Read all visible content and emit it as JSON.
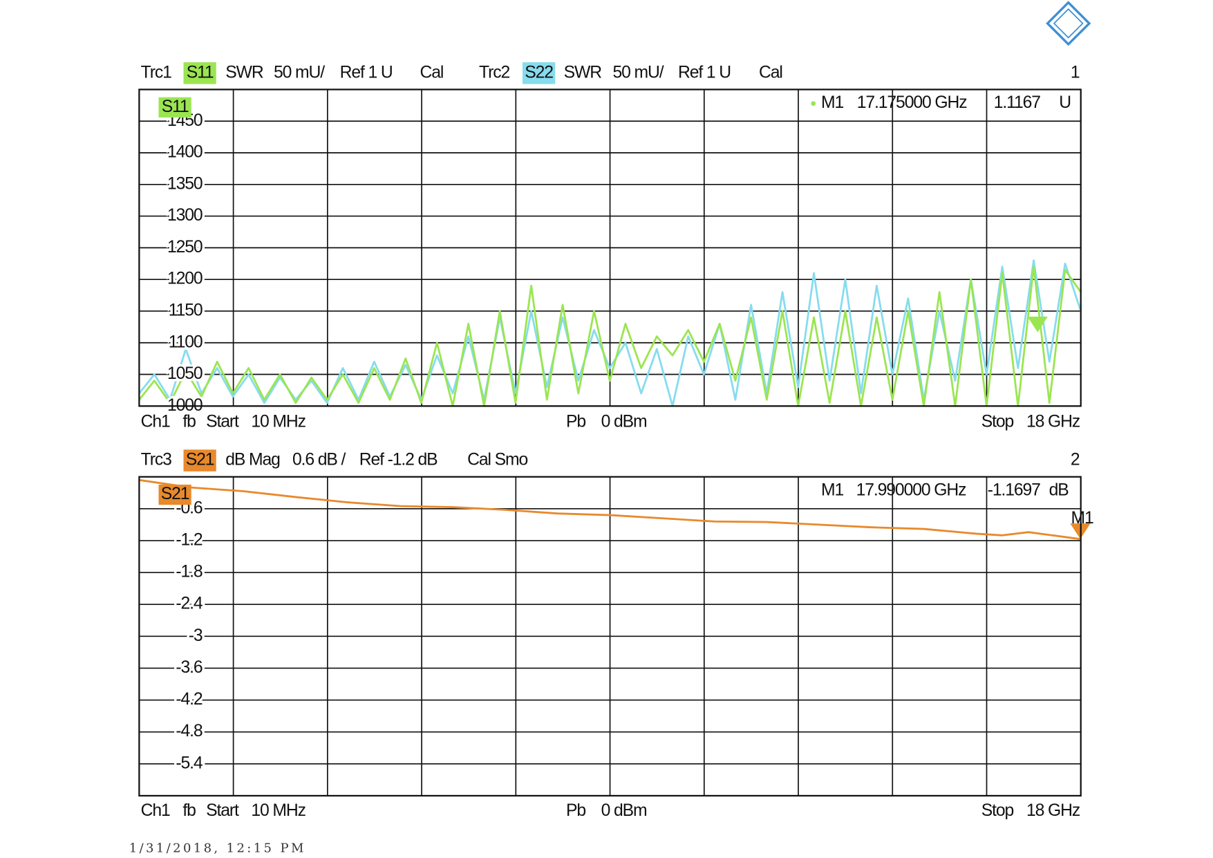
{
  "chart_data": [
    {
      "type": "line",
      "header": [
        "Trc1",
        "SWR",
        "50 mU/",
        "Ref 1 U",
        "Cal",
        "Trc2",
        "SWR",
        "50 mU/",
        "Ref 1 U",
        "Cal"
      ],
      "window": "1",
      "footer": [
        "Ch1",
        "fb",
        "Start",
        "10 MHz",
        "Pb",
        "0 dBm",
        "Stop",
        "18 GHz"
      ],
      "xlim": [
        0.01,
        18
      ],
      "ylim": [
        1000,
        1500
      ],
      "yticks": [
        1000,
        1050,
        1100,
        1150,
        1200,
        1250,
        1300,
        1350,
        1400,
        1450
      ],
      "grid": true,
      "x": [
        0.01,
        0.3,
        0.6,
        0.9,
        1.2,
        1.5,
        1.8,
        2.1,
        2.4,
        2.7,
        3.0,
        3.3,
        3.6,
        3.9,
        4.2,
        4.5,
        4.8,
        5.1,
        5.4,
        5.7,
        6.0,
        6.3,
        6.6,
        6.9,
        7.2,
        7.5,
        7.8,
        8.1,
        8.4,
        8.7,
        9.0,
        9.3,
        9.6,
        9.9,
        10.2,
        10.5,
        10.8,
        11.1,
        11.4,
        11.7,
        12.0,
        12.3,
        12.6,
        12.9,
        13.2,
        13.5,
        13.8,
        14.1,
        14.4,
        14.7,
        15.0,
        15.3,
        15.6,
        15.9,
        16.2,
        16.5,
        16.8,
        17.1,
        17.4,
        17.7,
        18.0
      ],
      "series": [
        {
          "name": "S11",
          "color": "#9be551",
          "values": [
            1010,
            1040,
            1005,
            1055,
            1015,
            1070,
            1020,
            1060,
            1010,
            1050,
            1005,
            1045,
            1010,
            1050,
            1005,
            1060,
            1010,
            1075,
            1005,
            1100,
            1000,
            1130,
            1000,
            1150,
            1005,
            1190,
            1010,
            1160,
            1020,
            1150,
            1040,
            1130,
            1060,
            1110,
            1080,
            1120,
            1070,
            1130,
            1040,
            1140,
            1010,
            1150,
            1000,
            1140,
            1005,
            1150,
            1000,
            1140,
            1010,
            1150,
            1000,
            1180,
            1000,
            1200,
            1000,
            1210,
            1000,
            1220,
            1005,
            1215,
            1180
          ]
        },
        {
          "name": "S22",
          "color": "#86dcee",
          "values": [
            1020,
            1050,
            1010,
            1090,
            1020,
            1060,
            1015,
            1050,
            1005,
            1045,
            1010,
            1040,
            1005,
            1060,
            1010,
            1070,
            1015,
            1065,
            1010,
            1080,
            1020,
            1110,
            1010,
            1140,
            1020,
            1150,
            1030,
            1140,
            1040,
            1120,
            1060,
            1100,
            1020,
            1090,
            1000,
            1110,
            1050,
            1130,
            1010,
            1160,
            1020,
            1180,
            1030,
            1210,
            1040,
            1200,
            1020,
            1190,
            1050,
            1170,
            1010,
            1150,
            1040,
            1200,
            1050,
            1220,
            1060,
            1230,
            1070,
            1225,
            1150
          ]
        }
      ],
      "marker": {
        "name": "M1",
        "x": 17.175,
        "y": 1116.7,
        "x_label": "17.175000 GHz",
        "y_label": "1.1167",
        "unit": "U"
      }
    },
    {
      "type": "line",
      "header": [
        "Trc3",
        "dB Mag",
        "0.6 dB /",
        "Ref -1.2 dB",
        "Cal Smo"
      ],
      "window": "2",
      "footer": [
        "Ch1",
        "fb",
        "Start",
        "10 MHz",
        "Pb",
        "0 dBm",
        "Stop",
        "18 GHz"
      ],
      "xlim": [
        0.01,
        18
      ],
      "ylim": [
        -6,
        0
      ],
      "yticks": [
        -5.4,
        -4.8,
        -4.2,
        -3.6,
        -3.0,
        -2.4,
        -1.8,
        -1.2,
        -0.6
      ],
      "grid": true,
      "x": [
        0.01,
        1,
        2,
        3,
        4,
        5,
        6,
        7,
        8,
        9,
        10,
        11,
        12,
        13,
        14,
        15,
        16,
        16.5,
        17,
        17.99
      ],
      "series": [
        {
          "name": "S21",
          "color": "#e8892c",
          "values": [
            -0.06,
            -0.2,
            -0.27,
            -0.38,
            -0.48,
            -0.55,
            -0.57,
            -0.62,
            -0.69,
            -0.72,
            -0.78,
            -0.84,
            -0.85,
            -0.9,
            -0.95,
            -0.98,
            -1.07,
            -1.1,
            -1.04,
            -1.17
          ]
        }
      ],
      "marker": {
        "name": "M1",
        "x": 17.99,
        "y": -1.1697,
        "x_label": "17.990000 GHz",
        "y_label": "-1.1697",
        "unit": "dB"
      }
    }
  ],
  "timestamp": "1/31/2018, 12:15 PM"
}
